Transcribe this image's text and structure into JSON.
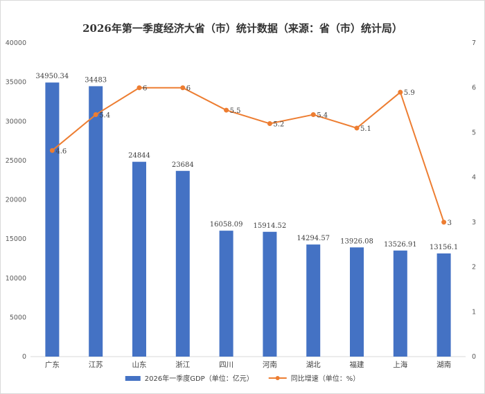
{
  "chart_data": {
    "type": "bar",
    "title": "2026年第一季度经济大省（市）统计数据（来源：省（市）统计局）",
    "categories": [
      "广东",
      "江苏",
      "山东",
      "浙江",
      "四川",
      "河南",
      "湖北",
      "福建",
      "上海",
      "湖南"
    ],
    "series": [
      {
        "name": "2026年一季度GDP（单位：亿元）",
        "type": "bar",
        "axis": "left",
        "color": "#4472c4",
        "values": [
          34950.34,
          34483,
          24844,
          23684,
          16058.09,
          15914.52,
          14294.57,
          13926.08,
          13526.91,
          13156.1
        ],
        "labels": [
          "34950.34",
          "34483",
          "24844",
          "23684",
          "16058.09",
          "15914.52",
          "14294.57",
          "13926.08",
          "13526.91",
          "13156.1"
        ]
      },
      {
        "name": "同比增速（单位：%）",
        "type": "line",
        "axis": "right",
        "color": "#ed7d31",
        "values": [
          4.6,
          5.4,
          6,
          6,
          5.5,
          5.2,
          5.4,
          5.1,
          5.9,
          3
        ],
        "labels": [
          "4.6",
          "5.4",
          "6",
          "6",
          "5.5",
          "5.2",
          "5.4",
          "5.1",
          "5.9",
          "3"
        ]
      }
    ],
    "ylim": [
      0,
      40000
    ],
    "y_ticks": [
      "0",
      "5000",
      "10000",
      "15000",
      "20000",
      "25000",
      "30000",
      "35000",
      "40000"
    ],
    "y2lim": [
      0,
      7
    ],
    "y2_ticks": [
      "0",
      "1",
      "2",
      "3",
      "4",
      "5",
      "6",
      "7"
    ],
    "grid": false,
    "legend_position": "bottom"
  }
}
